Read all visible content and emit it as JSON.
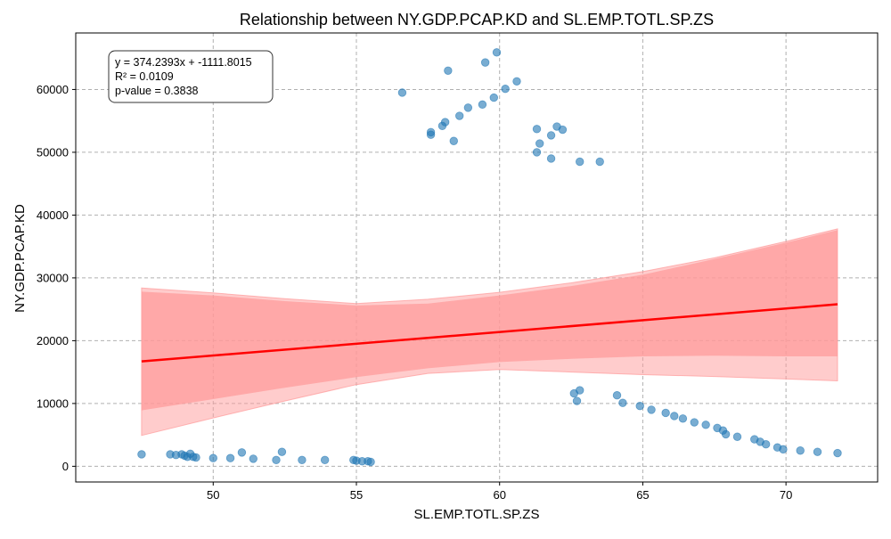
{
  "chart_data": {
    "type": "scatter",
    "title": "Relationship between NY.GDP.PCAP.KD and SL.EMP.TOTL.SP.ZS",
    "xlabel": "SL.EMP.TOTL.SP.ZS",
    "ylabel": "NY.GDP.PCAP.KD",
    "xlim": [
      45.2,
      73.2
    ],
    "ylim": [
      -2500,
      69000
    ],
    "x_ticks": [
      50,
      55,
      60,
      65,
      70
    ],
    "y_ticks": [
      0,
      10000,
      20000,
      30000,
      40000,
      50000,
      60000
    ],
    "grid": true,
    "annotation": [
      "y = 374.2393x + -1111.8015",
      "R² = 0.0109",
      "p-value = 0.3838"
    ],
    "colors": {
      "points": "#1f77b4",
      "regression_line": "#ff0000",
      "confidence_band": "#ff9999"
    },
    "points": [
      {
        "x": 47.5,
        "y": 1900
      },
      {
        "x": 48.5,
        "y": 1900
      },
      {
        "x": 48.7,
        "y": 1800
      },
      {
        "x": 48.9,
        "y": 1900
      },
      {
        "x": 49.0,
        "y": 1700
      },
      {
        "x": 49.1,
        "y": 1500
      },
      {
        "x": 49.2,
        "y": 2000
      },
      {
        "x": 49.3,
        "y": 1500
      },
      {
        "x": 49.4,
        "y": 1400
      },
      {
        "x": 50.0,
        "y": 1300
      },
      {
        "x": 50.6,
        "y": 1300
      },
      {
        "x": 51.0,
        "y": 2200
      },
      {
        "x": 51.4,
        "y": 1200
      },
      {
        "x": 52.2,
        "y": 1000
      },
      {
        "x": 52.4,
        "y": 2300
      },
      {
        "x": 53.1,
        "y": 1000
      },
      {
        "x": 53.9,
        "y": 1000
      },
      {
        "x": 54.9,
        "y": 1000
      },
      {
        "x": 55.0,
        "y": 900
      },
      {
        "x": 55.2,
        "y": 800
      },
      {
        "x": 55.4,
        "y": 800
      },
      {
        "x": 55.5,
        "y": 700
      },
      {
        "x": 56.6,
        "y": 59500
      },
      {
        "x": 57.6,
        "y": 53200
      },
      {
        "x": 57.6,
        "y": 52800
      },
      {
        "x": 58.0,
        "y": 54200
      },
      {
        "x": 58.1,
        "y": 54800
      },
      {
        "x": 58.2,
        "y": 63000
      },
      {
        "x": 58.4,
        "y": 51800
      },
      {
        "x": 58.6,
        "y": 55800
      },
      {
        "x": 58.9,
        "y": 57100
      },
      {
        "x": 59.4,
        "y": 57600
      },
      {
        "x": 59.5,
        "y": 64300
      },
      {
        "x": 59.8,
        "y": 58700
      },
      {
        "x": 59.9,
        "y": 65900
      },
      {
        "x": 60.2,
        "y": 60100
      },
      {
        "x": 60.6,
        "y": 61300
      },
      {
        "x": 61.3,
        "y": 53700
      },
      {
        "x": 61.3,
        "y": 50000
      },
      {
        "x": 61.4,
        "y": 51400
      },
      {
        "x": 61.8,
        "y": 52700
      },
      {
        "x": 61.8,
        "y": 49000
      },
      {
        "x": 62.0,
        "y": 54100
      },
      {
        "x": 62.2,
        "y": 53600
      },
      {
        "x": 62.8,
        "y": 48500
      },
      {
        "x": 63.5,
        "y": 48500
      },
      {
        "x": 62.6,
        "y": 11600
      },
      {
        "x": 62.7,
        "y": 10400
      },
      {
        "x": 62.8,
        "y": 12100
      },
      {
        "x": 64.1,
        "y": 11300
      },
      {
        "x": 64.3,
        "y": 10100
      },
      {
        "x": 64.9,
        "y": 9600
      },
      {
        "x": 65.3,
        "y": 9000
      },
      {
        "x": 65.8,
        "y": 8500
      },
      {
        "x": 66.1,
        "y": 8000
      },
      {
        "x": 66.4,
        "y": 7600
      },
      {
        "x": 66.8,
        "y": 7000
      },
      {
        "x": 67.2,
        "y": 6600
      },
      {
        "x": 67.6,
        "y": 6100
      },
      {
        "x": 67.8,
        "y": 5700
      },
      {
        "x": 67.9,
        "y": 5100
      },
      {
        "x": 68.3,
        "y": 4700
      },
      {
        "x": 68.9,
        "y": 4300
      },
      {
        "x": 69.1,
        "y": 3900
      },
      {
        "x": 69.3,
        "y": 3500
      },
      {
        "x": 69.7,
        "y": 3000
      },
      {
        "x": 69.9,
        "y": 2700
      },
      {
        "x": 70.5,
        "y": 2500
      },
      {
        "x": 71.1,
        "y": 2300
      },
      {
        "x": 71.8,
        "y": 2100
      }
    ],
    "regression_line": [
      {
        "x": 47.5,
        "y": 16700
      },
      {
        "x": 71.8,
        "y": 25800
      }
    ],
    "confidence_band_outer": {
      "x": [
        47.5,
        50,
        52.5,
        55,
        57.5,
        60,
        62.5,
        65,
        67.5,
        70,
        71.8
      ],
      "upper": [
        28400,
        27600,
        26700,
        25900,
        26600,
        27700,
        29200,
        31000,
        33200,
        35800,
        37800
      ],
      "lower": [
        4900,
        7700,
        10400,
        13000,
        14800,
        15400,
        15000,
        14600,
        14300,
        13900,
        13600
      ]
    },
    "confidence_band_inner": {
      "x": [
        47.5,
        50,
        52.5,
        55,
        57.5,
        60,
        62.5,
        65,
        67.5,
        70,
        71.8
      ],
      "upper": [
        27800,
        27200,
        26300,
        25600,
        25900,
        27200,
        28700,
        30500,
        33000,
        35600,
        37600
      ],
      "lower": [
        8900,
        10700,
        12500,
        14200,
        15600,
        16600,
        17100,
        17500,
        17600,
        17500,
        17500
      ]
    }
  }
}
